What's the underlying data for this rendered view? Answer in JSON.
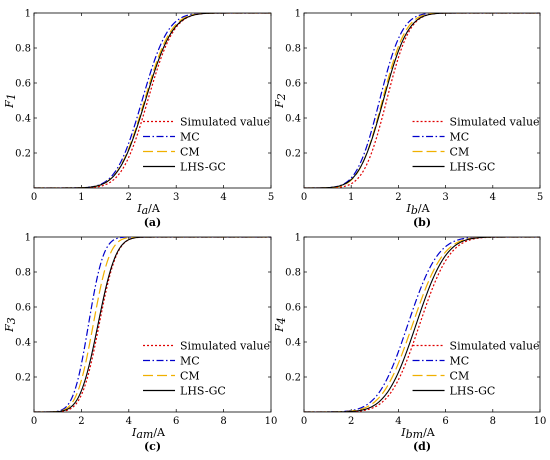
{
  "chart_data": [
    {
      "type": "line",
      "panel_label": "(a)",
      "xlabel": {
        "sym": "I",
        "sub": "a",
        "unit": "/A"
      },
      "ylabel": {
        "sym": "F",
        "sub": "1"
      },
      "xlim": [
        0,
        5
      ],
      "ylim": [
        0,
        1
      ],
      "xticks": [
        0,
        1,
        2,
        3,
        4,
        5
      ],
      "yticks": [
        0.2,
        0.4,
        0.6,
        0.8,
        1
      ],
      "ytick_labels": [
        "0.2",
        "0.4",
        "0.6",
        "0.8",
        "1"
      ],
      "legend_position": "bottom-right",
      "series": [
        {
          "name": "Simulated value",
          "style": "dotted",
          "color": "#e00000",
          "mu": 2.4,
          "sigma": 0.43
        },
        {
          "name": "MC",
          "style": "dashdot",
          "color": "#0000cc",
          "mu": 2.28,
          "sigma": 0.43
        },
        {
          "name": "CM",
          "style": "dashed",
          "color": "#f0b000",
          "mu": 2.33,
          "sigma": 0.44
        },
        {
          "name": "LHS-GC",
          "style": "solid",
          "color": "#000000",
          "mu": 2.35,
          "sigma": 0.45
        }
      ]
    },
    {
      "type": "line",
      "panel_label": "(b)",
      "xlabel": {
        "sym": "I",
        "sub": "b",
        "unit": "/A"
      },
      "ylabel": {
        "sym": "F",
        "sub": "2"
      },
      "xlim": [
        0,
        5
      ],
      "ylim": [
        0,
        1
      ],
      "xticks": [
        0,
        1,
        2,
        3,
        4,
        5
      ],
      "yticks": [
        0.2,
        0.4,
        0.6,
        0.8,
        1
      ],
      "ytick_labels": [
        "0.2",
        "0.4",
        "0.6",
        "0.8",
        "1"
      ],
      "legend_position": "bottom-right",
      "series": [
        {
          "name": "Simulated value",
          "style": "dotted",
          "color": "#e00000",
          "mu": 1.75,
          "sigma": 0.38
        },
        {
          "name": "MC",
          "style": "dashdot",
          "color": "#0000cc",
          "mu": 1.6,
          "sigma": 0.38
        },
        {
          "name": "CM",
          "style": "dashed",
          "color": "#f0b000",
          "mu": 1.66,
          "sigma": 0.39
        },
        {
          "name": "LHS-GC",
          "style": "solid",
          "color": "#000000",
          "mu": 1.68,
          "sigma": 0.41
        }
      ]
    },
    {
      "type": "line",
      "panel_label": "(c)",
      "xlabel": {
        "sym": "I",
        "sub": "am",
        "unit": "/A"
      },
      "ylabel": {
        "sym": "F",
        "sub": "3"
      },
      "xlim": [
        0,
        10
      ],
      "ylim": [
        0,
        1
      ],
      "xticks": [
        0,
        2,
        4,
        6,
        8,
        10
      ],
      "yticks": [
        0.2,
        0.4,
        0.6,
        0.8,
        1
      ],
      "ytick_labels": [
        "0.2",
        "0.4",
        "0.6",
        "0.8",
        "1"
      ],
      "legend_position": "bottom-right",
      "series": [
        {
          "name": "Simulated value",
          "style": "dotted",
          "color": "#e00000",
          "mu": 2.75,
          "sigma": 0.58
        },
        {
          "name": "MC",
          "style": "dashdot",
          "color": "#0000cc",
          "mu": 2.3,
          "sigma": 0.5
        },
        {
          "name": "CM",
          "style": "dashed",
          "color": "#f0b000",
          "mu": 2.5,
          "sigma": 0.55
        },
        {
          "name": "LHS-GC",
          "style": "solid",
          "color": "#000000",
          "mu": 2.7,
          "sigma": 0.6
        }
      ]
    },
    {
      "type": "line",
      "panel_label": "(d)",
      "xlabel": {
        "sym": "I",
        "sub": "bm",
        "unit": "/A"
      },
      "ylabel": {
        "sym": "F",
        "sub": "4"
      },
      "xlim": [
        0,
        10
      ],
      "ylim": [
        0,
        1
      ],
      "xticks": [
        0,
        2,
        4,
        6,
        8,
        10
      ],
      "yticks": [
        0.2,
        0.4,
        0.6,
        0.8,
        1
      ],
      "ytick_labels": [
        "0.2",
        "0.4",
        "0.6",
        "0.8",
        "1"
      ],
      "legend_position": "bottom-right",
      "series": [
        {
          "name": "Simulated value",
          "style": "dotted",
          "color": "#e00000",
          "mu": 4.9,
          "sigma": 1.0
        },
        {
          "name": "MC",
          "style": "dashdot",
          "color": "#0000cc",
          "mu": 4.4,
          "sigma": 1.0
        },
        {
          "name": "CM",
          "style": "dashed",
          "color": "#f0b000",
          "mu": 4.6,
          "sigma": 1.02
        },
        {
          "name": "LHS-GC",
          "style": "solid",
          "color": "#000000",
          "mu": 4.75,
          "sigma": 1.0
        }
      ]
    }
  ]
}
